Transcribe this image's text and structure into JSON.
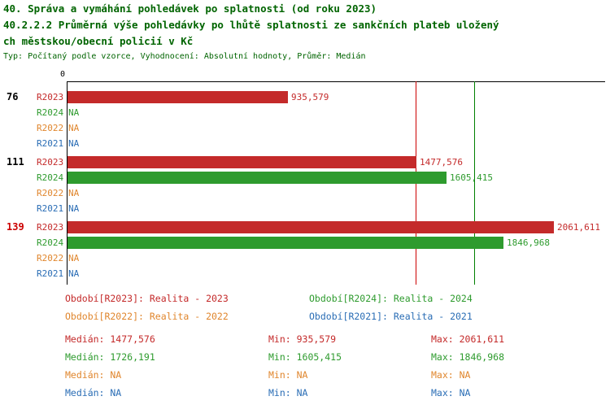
{
  "title": {
    "line1": "40. Správa a vymáhání pohledávek po splatnosti (od roku 2023)",
    "line2": "40.2.2.2 Průměrná výše pohledávky po lhůtě splatnosti ze sankčních plateb uložený",
    "line3": "ch městskou/obecní policií v Kč",
    "meta": "Typ: Počítaný podle vzorce, Vyhodnocení: Absolutní hodnoty, Průměr: Medián"
  },
  "colors": {
    "title": "#006400",
    "meta": "#006400",
    "axis": "#000000",
    "R2023": "#c42a2a",
    "R2024": "#2e9b2e",
    "R2022": "#e0862d",
    "R2021": "#2a6db5",
    "ref_red": "#cc0000",
    "ref_green": "#008000",
    "group_label": "#000000",
    "group_label_highlight": "#cc0000"
  },
  "chart_data": {
    "type": "bar",
    "orientation": "horizontal",
    "title": "40.2.2.2 Průměrná výše pohledávky po lhůtě splatnosti ze sankčních plateb uložených městskou/obecní policií v Kč",
    "value_axis_origin_label": "0",
    "axis_min": 0,
    "axis_max": 2061.611,
    "series_order": [
      "R2023",
      "R2024",
      "R2022",
      "R2021"
    ],
    "groups": [
      {
        "label": "76",
        "highlight": false,
        "bars": [
          {
            "series": "R2023",
            "value": 935.579,
            "display": "935,579"
          },
          {
            "series": "R2024",
            "value": null,
            "display": "NA"
          },
          {
            "series": "R2022",
            "value": null,
            "display": "NA"
          },
          {
            "series": "R2021",
            "value": null,
            "display": "NA"
          }
        ]
      },
      {
        "label": "111",
        "highlight": false,
        "bars": [
          {
            "series": "R2023",
            "value": 1477.576,
            "display": "1477,576"
          },
          {
            "series": "R2024",
            "value": 1605.415,
            "display": "1605,415"
          },
          {
            "series": "R2022",
            "value": null,
            "display": "NA"
          },
          {
            "series": "R2021",
            "value": null,
            "display": "NA"
          }
        ]
      },
      {
        "label": "139",
        "highlight": true,
        "bars": [
          {
            "series": "R2023",
            "value": 2061.611,
            "display": "2061,611"
          },
          {
            "series": "R2024",
            "value": 1846.968,
            "display": "1846,968"
          },
          {
            "series": "R2022",
            "value": null,
            "display": "NA"
          },
          {
            "series": "R2021",
            "value": null,
            "display": "NA"
          }
        ]
      }
    ],
    "reference_lines": [
      {
        "series": "R2023",
        "meaning": "median",
        "value": 1477.576,
        "color_key": "ref_red"
      },
      {
        "series": "R2024",
        "meaning": "median",
        "value": 1726.191,
        "color_key": "ref_green"
      }
    ]
  },
  "legend": [
    {
      "series": "R2023",
      "label": "Období[R2023]: Realita - 2023"
    },
    {
      "series": "R2024",
      "label": "Období[R2024]: Realita - 2024"
    },
    {
      "series": "R2022",
      "label": "Období[R2022]: Realita - 2022"
    },
    {
      "series": "R2021",
      "label": "Období[R2021]: Realita - 2021"
    }
  ],
  "stats": {
    "labels": {
      "median": "Medián:",
      "min": "Min:",
      "max": "Max:"
    },
    "rows": [
      {
        "series": "R2023",
        "median": "1477,576",
        "min": "935,579",
        "max": "2061,611"
      },
      {
        "series": "R2024",
        "median": "1726,191",
        "min": "1605,415",
        "max": "1846,968"
      },
      {
        "series": "R2022",
        "median": "NA",
        "min": "NA",
        "max": "NA"
      },
      {
        "series": "R2021",
        "median": "NA",
        "min": "NA",
        "max": "NA"
      }
    ]
  }
}
